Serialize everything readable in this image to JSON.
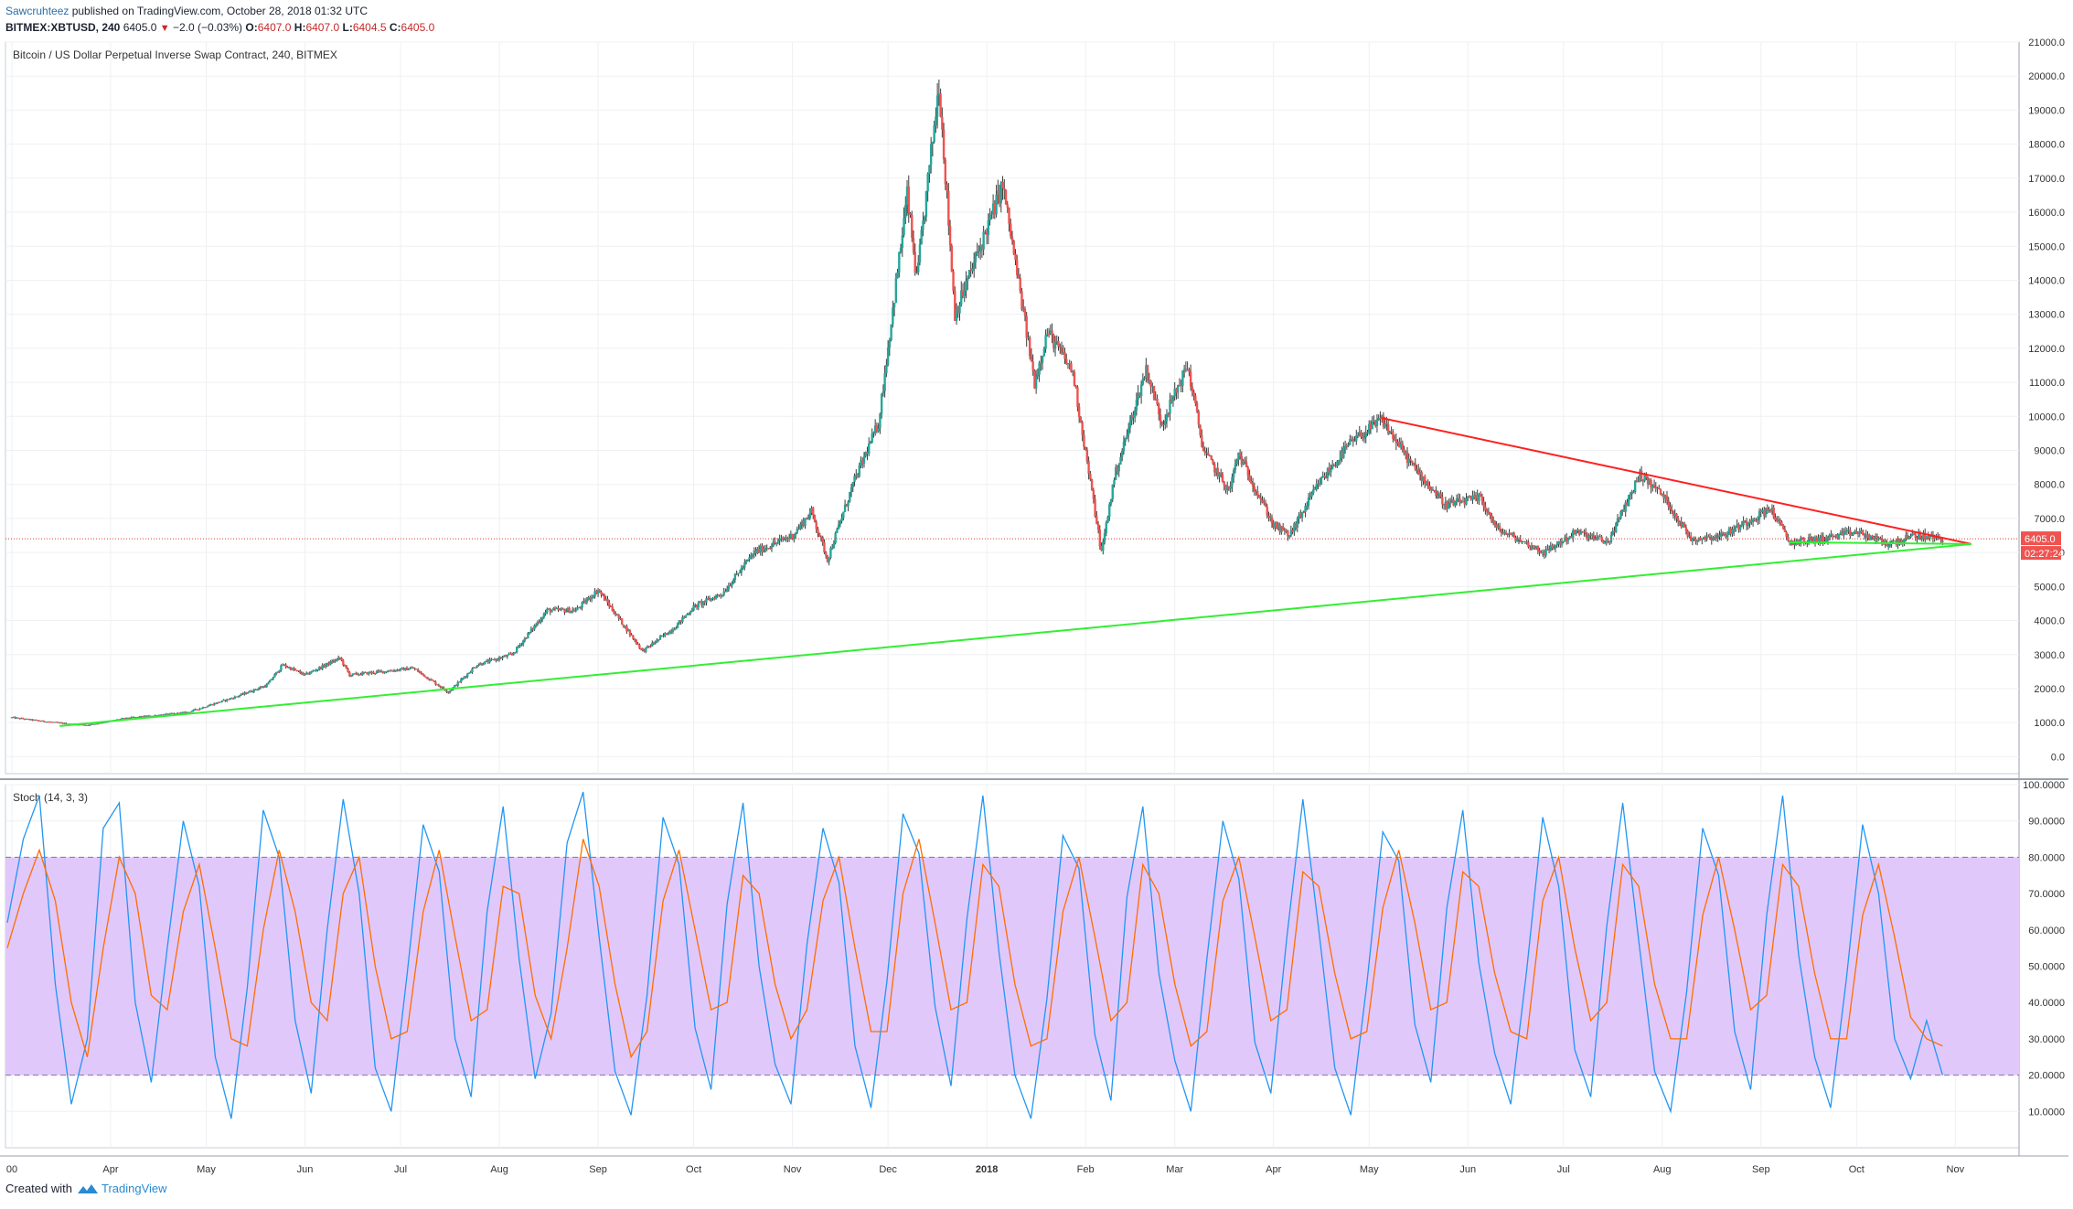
{
  "header": {
    "author": "Sawcruhteez",
    "published": " published on TradingView.com, October 28, 2018 01:32 UTC",
    "symbol": "BITMEX:XBTUSD, 240",
    "last": "6405.0",
    "change": "−2.0 (−0.03%)",
    "o_label": "O:",
    "o_value": "6407.0",
    "h_label": "H:",
    "h_value": "6407.0",
    "l_label": "L:",
    "l_value": "6404.5",
    "c_label": "C:",
    "c_value": "6405.0"
  },
  "footer": {
    "created_with": "Created with",
    "brand": "TradingView"
  },
  "colors": {
    "up": "#26a69a",
    "down": "#ef5350",
    "candle": "#3d3d3d",
    "resistance": "#ff1f1f",
    "support": "#33ee33",
    "stoch_k": "#2196f3",
    "stoch_d": "#ff6d00",
    "band": "#e1c8fb"
  },
  "chart_data": [
    {
      "type": "candlestick",
      "title": "Bitcoin / US Dollar Perpetual Inverse Swap Contract, 240, BITMEX",
      "ylim": [
        -500,
        21000
      ],
      "y_ticks": [
        "0.0",
        "1000.0",
        "2000.0",
        "3000.0",
        "4000.0",
        "5000.0",
        "6000.0",
        "7000.0",
        "8000.0",
        "9000.0",
        "10000.0",
        "11000.0",
        "12000.0",
        "13000.0",
        "14000.0",
        "15000.0",
        "16000.0",
        "17000.0",
        "18000.0",
        "19000.0",
        "20000.0",
        "21000.0"
      ],
      "last_price_label": "6405.0",
      "countdown_label": "02:27:24",
      "price_path": [
        [
          "2017-03-01",
          1150
        ],
        [
          "2017-03-10",
          1050
        ],
        [
          "2017-03-20",
          950
        ],
        [
          "2017-03-25",
          930
        ],
        [
          "2017-04-05",
          1120
        ],
        [
          "2017-04-25",
          1300
        ],
        [
          "2017-05-10",
          1750
        ],
        [
          "2017-05-20",
          2100
        ],
        [
          "2017-05-25",
          2700
        ],
        [
          "2017-06-01",
          2400
        ],
        [
          "2017-06-12",
          2900
        ],
        [
          "2017-06-15",
          2400
        ],
        [
          "2017-06-25",
          2500
        ],
        [
          "2017-07-05",
          2600
        ],
        [
          "2017-07-16",
          1900
        ],
        [
          "2017-07-25",
          2700
        ],
        [
          "2017-08-05",
          3000
        ],
        [
          "2017-08-16",
          4300
        ],
        [
          "2017-08-25",
          4300
        ],
        [
          "2017-09-01",
          4900
        ],
        [
          "2017-09-15",
          3100
        ],
        [
          "2017-09-25",
          3800
        ],
        [
          "2017-10-01",
          4400
        ],
        [
          "2017-10-10",
          4800
        ],
        [
          "2017-10-20",
          6000
        ],
        [
          "2017-11-01",
          6500
        ],
        [
          "2017-11-07",
          7200
        ],
        [
          "2017-11-12",
          5800
        ],
        [
          "2017-11-20",
          8000
        ],
        [
          "2017-11-28",
          9800
        ],
        [
          "2017-12-07",
          16500
        ],
        [
          "2017-12-10",
          14000
        ],
        [
          "2017-12-17",
          19800
        ],
        [
          "2017-12-22",
          13000
        ],
        [
          "2017-12-28",
          14500
        ],
        [
          "2018-01-06",
          16800
        ],
        [
          "2018-01-16",
          11000
        ],
        [
          "2018-01-20",
          12500
        ],
        [
          "2018-01-28",
          11300
        ],
        [
          "2018-02-06",
          6000
        ],
        [
          "2018-02-10",
          8200
        ],
        [
          "2018-02-20",
          11400
        ],
        [
          "2018-02-25",
          9800
        ],
        [
          "2018-03-05",
          11500
        ],
        [
          "2018-03-10",
          9000
        ],
        [
          "2018-03-18",
          7800
        ],
        [
          "2018-03-21",
          8900
        ],
        [
          "2018-04-01",
          6800
        ],
        [
          "2018-04-06",
          6500
        ],
        [
          "2018-04-15",
          8000
        ],
        [
          "2018-04-25",
          9200
        ],
        [
          "2018-05-05",
          9900
        ],
        [
          "2018-05-15",
          8500
        ],
        [
          "2018-05-25",
          7400
        ],
        [
          "2018-06-05",
          7600
        ],
        [
          "2018-06-10",
          6700
        ],
        [
          "2018-06-25",
          6000
        ],
        [
          "2018-07-05",
          6600
        ],
        [
          "2018-07-15",
          6300
        ],
        [
          "2018-07-25",
          8300
        ],
        [
          "2018-08-01",
          7700
        ],
        [
          "2018-08-10",
          6400
        ],
        [
          "2018-08-20",
          6500
        ],
        [
          "2018-09-04",
          7300
        ],
        [
          "2018-09-10",
          6300
        ],
        [
          "2018-09-20",
          6400
        ],
        [
          "2018-10-01",
          6600
        ],
        [
          "2018-10-11",
          6250
        ],
        [
          "2018-10-20",
          6500
        ],
        [
          "2018-10-28",
          6405
        ]
      ],
      "x_ticks": [
        "00",
        "Apr",
        "May",
        "Jun",
        "Jul",
        "Aug",
        "Sep",
        "Oct",
        "Nov",
        "Dec",
        "2018",
        "Feb",
        "Mar",
        "Apr",
        "May",
        "Jun",
        "Jul",
        "Aug",
        "Sep",
        "Oct",
        "Nov"
      ],
      "x_tick_dates": [
        "2017-03-01",
        "2017-04-01",
        "2017-05-01",
        "2017-06-01",
        "2017-07-01",
        "2017-08-01",
        "2017-09-01",
        "2017-10-01",
        "2017-11-01",
        "2017-12-01",
        "2018-01-01",
        "2018-02-01",
        "2018-03-01",
        "2018-04-01",
        "2018-05-01",
        "2018-06-01",
        "2018-07-01",
        "2018-08-01",
        "2018-09-01",
        "2018-10-01",
        "2018-11-01"
      ],
      "x_range": [
        "2017-02-27",
        "2018-11-21"
      ],
      "trendlines": [
        {
          "name": "resistance",
          "from": [
            "2018-05-05",
            9950
          ],
          "to": [
            "2018-11-06",
            6250
          ]
        },
        {
          "name": "support",
          "from": [
            "2017-03-16",
            900
          ],
          "to": [
            "2018-11-06",
            6250
          ]
        },
        {
          "name": "support-short",
          "from": [
            "2018-09-10",
            6300
          ],
          "to": [
            "2018-11-06",
            6250
          ]
        }
      ]
    },
    {
      "type": "line",
      "title": "Stoch (14, 3, 3)",
      "ylim": [
        0,
        100
      ],
      "y_ticks": [
        "10.0000",
        "20.0000",
        "30.0000",
        "40.0000",
        "50.0000",
        "60.0000",
        "70.0000",
        "80.0000",
        "90.0000",
        "100.0000"
      ],
      "band": [
        20,
        80
      ],
      "series": [
        {
          "name": "%K",
          "values": [
            62,
            85,
            97,
            45,
            12,
            30,
            88,
            95,
            40,
            18,
            55,
            90,
            72,
            25,
            8,
            44,
            93,
            80,
            35,
            15,
            60,
            96,
            70,
            22,
            10,
            48,
            89,
            76,
            30,
            14,
            65,
            94,
            52,
            19,
            37,
            84,
            98,
            58,
            21,
            9,
            42,
            91,
            78,
            33,
            16,
            67,
            95,
            50,
            23,
            12,
            56,
            88,
            73,
            28,
            11,
            46,
            92,
            81,
            39,
            17,
            63,
            97,
            54,
            20,
            8,
            41,
            86,
            77,
            31,
            13,
            69,
            94,
            48,
            24,
            10,
            52,
            90,
            74,
            29,
            15,
            58,
            96,
            60,
            22,
            9,
            45,
            87,
            79,
            34,
            18,
            66,
            93,
            51,
            26,
            12,
            49,
            91,
            72,
            27,
            14,
            61,
            95,
            57,
            21,
            10,
            43,
            88,
            75,
            32,
            16,
            64,
            97,
            53,
            25,
            11,
            47,
            89,
            70,
            30,
            19,
            35,
            20
          ]
        },
        {
          "name": "%D",
          "values": [
            55,
            70,
            82,
            68,
            40,
            25,
            55,
            80,
            70,
            42,
            38,
            65,
            78,
            55,
            30,
            28,
            60,
            82,
            65,
            40,
            35,
            70,
            80,
            50,
            30,
            32,
            65,
            82,
            58,
            35,
            38,
            72,
            70,
            42,
            30,
            55,
            85,
            72,
            45,
            25,
            32,
            68,
            82,
            60,
            38,
            40,
            75,
            70,
            45,
            30,
            38,
            68,
            80,
            55,
            32,
            32,
            70,
            85,
            62,
            38,
            40,
            78,
            72,
            45,
            28,
            30,
            65,
            80,
            58,
            35,
            40,
            78,
            70,
            45,
            28,
            32,
            68,
            80,
            58,
            35,
            38,
            76,
            72,
            48,
            30,
            32,
            66,
            82,
            62,
            38,
            40,
            76,
            72,
            48,
            32,
            30,
            68,
            80,
            55,
            35,
            40,
            78,
            72,
            45,
            30,
            30,
            64,
            80,
            60,
            38,
            42,
            78,
            72,
            48,
            30,
            30,
            64,
            78,
            58,
            36,
            30,
            28
          ]
        }
      ]
    }
  ]
}
